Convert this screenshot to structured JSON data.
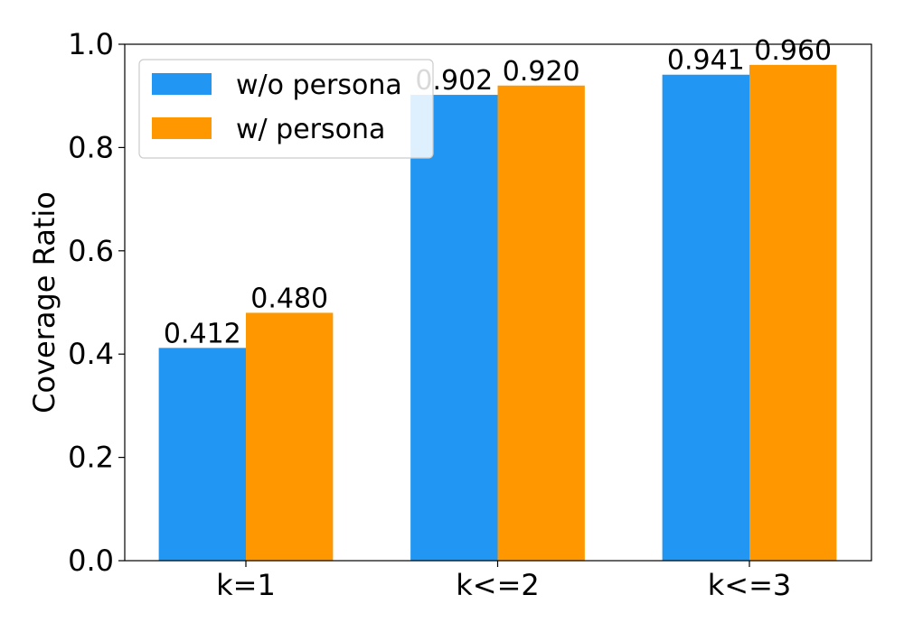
{
  "chart_data": {
    "type": "bar",
    "categories": [
      "k=1",
      "k<=2",
      "k<=3"
    ],
    "series": [
      {
        "name": "w/o persona",
        "values": [
          0.412,
          0.902,
          0.941
        ],
        "labels": [
          "0.412",
          "0.902",
          "0.941"
        ],
        "color": "#2196f3"
      },
      {
        "name": "w/ persona",
        "values": [
          0.48,
          0.92,
          0.96
        ],
        "labels": [
          "0.480",
          "0.920",
          "0.960"
        ],
        "color": "#ff9800"
      }
    ],
    "xlabel": "",
    "ylabel": "Coverage Ratio",
    "ylim": [
      0,
      1.0
    ],
    "yticks": [
      "0.0",
      "0.2",
      "0.4",
      "0.6",
      "0.8",
      "1.0"
    ],
    "ytick_values": [
      0.0,
      0.2,
      0.4,
      0.6,
      0.8,
      1.0
    ],
    "grid": false,
    "legend_position": "top-left"
  }
}
